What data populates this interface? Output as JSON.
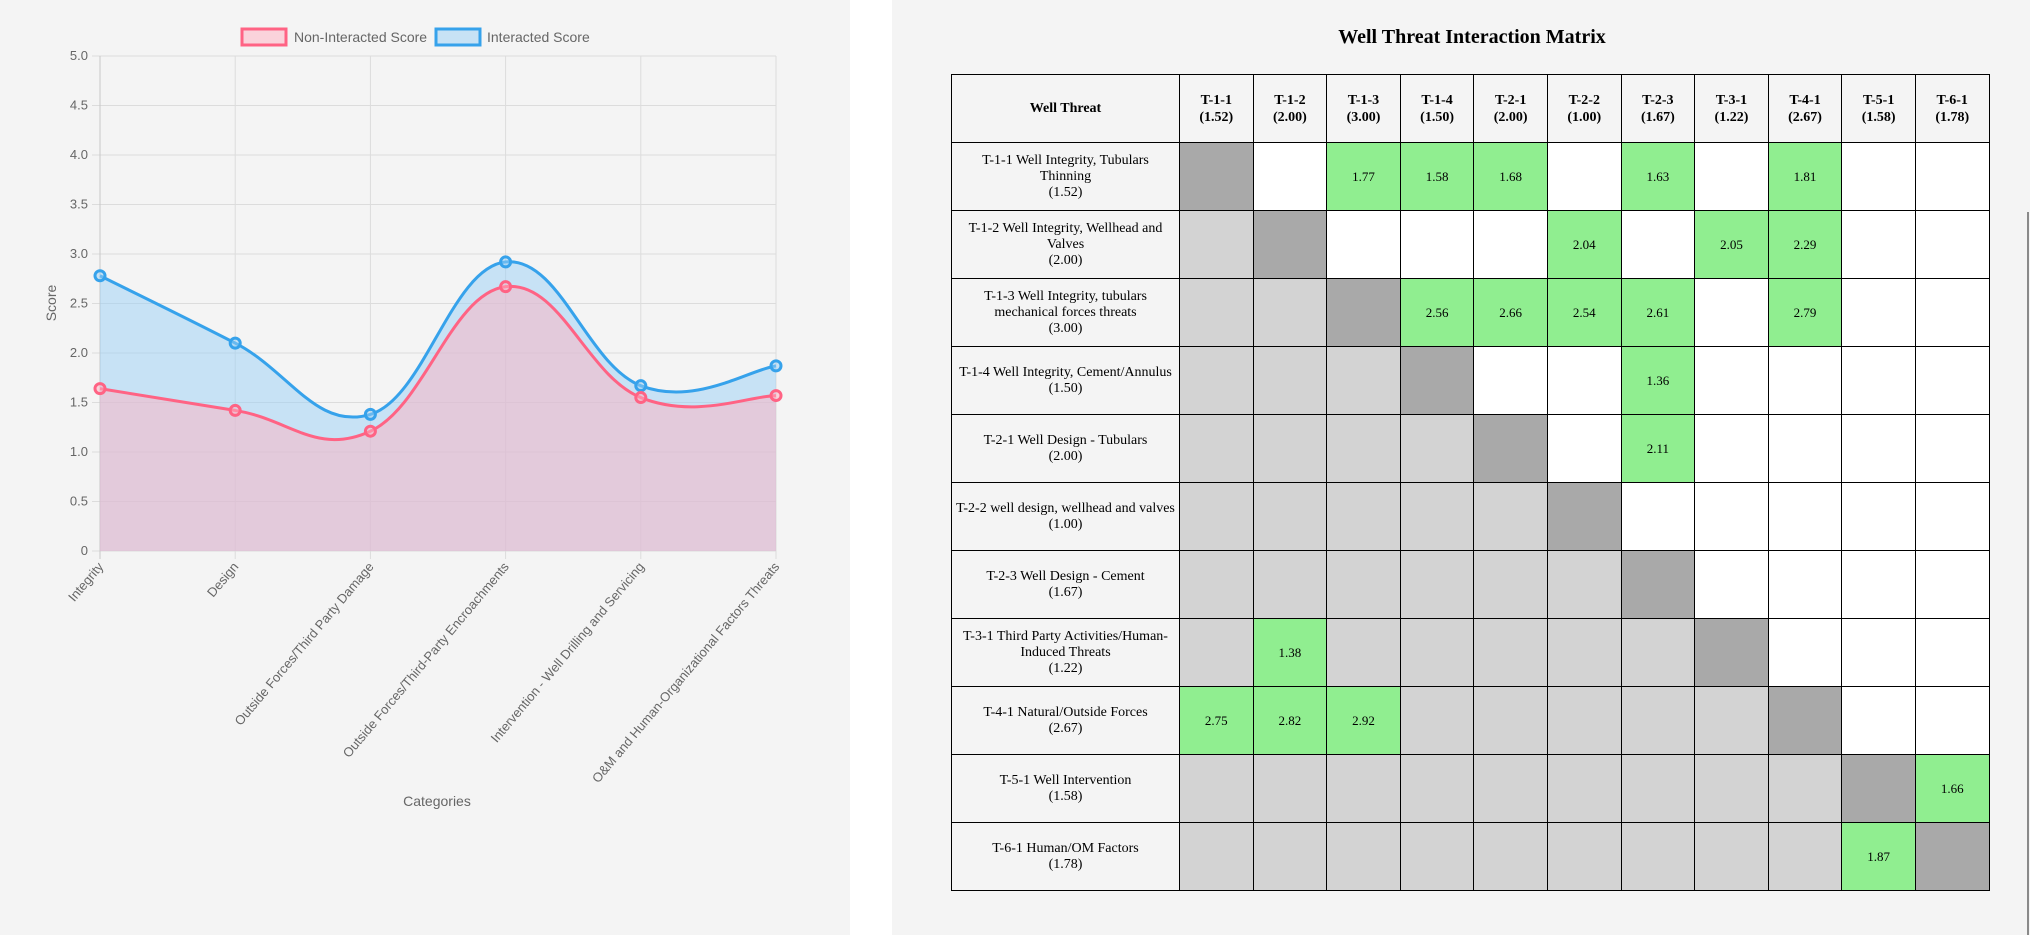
{
  "chart_data": {
    "type": "line",
    "subtype": "area",
    "xlabel": "Categories",
    "ylabel": "Score",
    "ylim": [
      0,
      5
    ],
    "yticks": [
      "0",
      "0.5",
      "1.0",
      "1.5",
      "2.0",
      "2.5",
      "3.0",
      "3.5",
      "4.0",
      "4.5",
      "5.0"
    ],
    "ytick_values": [
      0,
      0.5,
      1.0,
      1.5,
      2.0,
      2.5,
      3.0,
      3.5,
      4.0,
      4.5,
      5.0
    ],
    "grid": true,
    "legend_position": "top",
    "categories": [
      "Integrity",
      "Design",
      "Outside Forces/Third Party Damage",
      "Outside Forces/Third-Party Encroachments",
      "Intervention - Well Drilling and Servicing",
      "O&M and Human-Organizational Factors Threats"
    ],
    "series": [
      {
        "name": "Non-Interacted Score",
        "values": [
          1.64,
          1.42,
          1.21,
          2.67,
          1.55,
          1.57
        ],
        "line_color": "#ff6384",
        "fill_color": "#ffb1c1"
      },
      {
        "name": "Interacted Score",
        "values": [
          2.78,
          2.1,
          1.38,
          2.92,
          1.67,
          1.87
        ],
        "line_color": "#36a2eb",
        "fill_color": "#9ad0f5"
      }
    ]
  },
  "matrix": {
    "title": "Well Threat Interaction Matrix",
    "corner_header": "Well Threat",
    "columns": [
      {
        "id": "T-1-1",
        "score": "(1.52)"
      },
      {
        "id": "T-1-2",
        "score": "(2.00)"
      },
      {
        "id": "T-1-3",
        "score": "(3.00)"
      },
      {
        "id": "T-1-4",
        "score": "(1.50)"
      },
      {
        "id": "T-2-1",
        "score": "(2.00)"
      },
      {
        "id": "T-2-2",
        "score": "(1.00)"
      },
      {
        "id": "T-2-3",
        "score": "(1.67)"
      },
      {
        "id": "T-3-1",
        "score": "(1.22)"
      },
      {
        "id": "T-4-1",
        "score": "(2.67)"
      },
      {
        "id": "T-5-1",
        "score": "(1.58)"
      },
      {
        "id": "T-6-1",
        "score": "(1.78)"
      }
    ],
    "rows": [
      {
        "label": "T-1-1 Well Integrity, Tubulars Thinning",
        "score": "(1.52)",
        "cells": [
          "",
          "",
          "1.77",
          "1.58",
          "1.68",
          "",
          "1.63",
          "",
          "1.81",
          "",
          ""
        ]
      },
      {
        "label": "T-1-2 Well Integrity, Wellhead and Valves",
        "score": "(2.00)",
        "cells": [
          "",
          "",
          "",
          "",
          "",
          "2.04",
          "",
          "2.05",
          "2.29",
          "",
          ""
        ]
      },
      {
        "label": "T-1-3 Well Integrity, tubulars mechanical forces threats",
        "score": "(3.00)",
        "cells": [
          "",
          "",
          "",
          "2.56",
          "2.66",
          "2.54",
          "2.61",
          "",
          "2.79",
          "",
          ""
        ]
      },
      {
        "label": "T-1-4 Well Integrity, Cement/Annulus",
        "score": "(1.50)",
        "cells": [
          "",
          "",
          "",
          "",
          "",
          "",
          "1.36",
          "",
          "",
          "",
          ""
        ]
      },
      {
        "label": "T-2-1 Well Design - Tubulars",
        "score": "(2.00)",
        "cells": [
          "",
          "",
          "",
          "",
          "",
          "",
          "2.11",
          "",
          "",
          "",
          ""
        ]
      },
      {
        "label": "T-2-2 well design, wellhead and valves",
        "score": "(1.00)",
        "cells": [
          "",
          "",
          "",
          "",
          "",
          "",
          "",
          "",
          "",
          "",
          ""
        ]
      },
      {
        "label": "T-2-3 Well Design - Cement",
        "score": "(1.67)",
        "cells": [
          "",
          "",
          "",
          "",
          "",
          "",
          "",
          "",
          "",
          "",
          ""
        ]
      },
      {
        "label": "T-3-1 Third Party Activities/Human-Induced Threats",
        "score": "(1.22)",
        "cells": [
          "",
          "1.38",
          "",
          "",
          "",
          "",
          "",
          "",
          "",
          "",
          ""
        ]
      },
      {
        "label": "T-4-1 Natural/Outside Forces",
        "score": "(2.67)",
        "cells": [
          "2.75",
          "2.82",
          "2.92",
          "",
          "",
          "",
          "",
          "",
          "",
          "",
          ""
        ]
      },
      {
        "label": "T-5-1 Well Intervention",
        "score": "(1.58)",
        "cells": [
          "",
          "",
          "",
          "",
          "",
          "",
          "",
          "",
          "",
          "",
          "1.66"
        ]
      },
      {
        "label": "T-6-1 Human/OM Factors",
        "score": "(1.78)",
        "cells": [
          "",
          "",
          "",
          "",
          "",
          "",
          "",
          "",
          "",
          "1.87",
          ""
        ]
      }
    ],
    "colors": {
      "interaction": "#90ee90",
      "diagonal": "#a9a9a9",
      "lower": "#d3d3d3",
      "empty": "#ffffff"
    }
  }
}
